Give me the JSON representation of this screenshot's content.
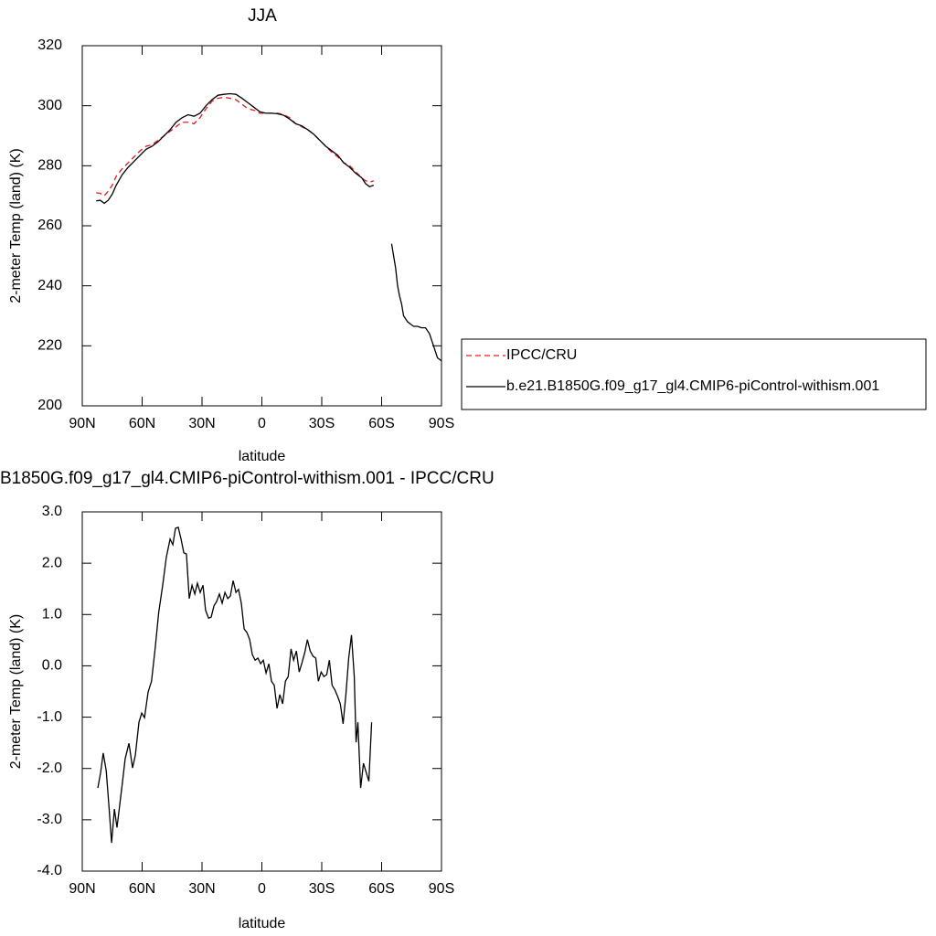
{
  "chart_data": [
    {
      "type": "line",
      "title": "JJA",
      "x_label": "latitude",
      "y_label": "2-meter Temp (land) (K)",
      "xlim": [
        90,
        -90
      ],
      "xticks": [
        {
          "value": 90,
          "label": "90N"
        },
        {
          "value": 60,
          "label": "60N"
        },
        {
          "value": 30,
          "label": "30N"
        },
        0,
        {
          "value": -30,
          "label": "30S"
        },
        {
          "value": -60,
          "label": "60S"
        },
        {
          "value": -90,
          "label": "90S"
        }
      ],
      "ylim": [
        200,
        320
      ],
      "yticks": [
        200,
        220,
        240,
        260,
        280,
        300,
        320
      ],
      "legend": "right",
      "x": [
        83,
        81,
        79,
        77,
        75,
        73,
        70,
        67,
        64,
        61,
        58,
        55,
        52,
        49,
        46,
        43,
        40,
        37,
        34,
        31,
        28,
        25,
        22,
        19,
        16,
        13,
        10,
        7,
        4,
        1,
        -2,
        -5,
        -8,
        -11,
        -14,
        -17,
        -20,
        -23,
        -26,
        -29,
        -32,
        -35,
        -38,
        -41,
        -44,
        -47,
        -50,
        -52,
        -54,
        -56,
        -60,
        -65,
        -67,
        -68,
        -69,
        -70,
        -71,
        -73,
        -75,
        -76,
        -78,
        -80,
        -82,
        -84,
        -86,
        -88,
        -90
      ],
      "series": [
        {
          "name": "IPCC/CRU",
          "color": "#e41a1c",
          "line_style": "dashed",
          "values": [
            271,
            270.8,
            270,
            271.5,
            273.5,
            276.5,
            279,
            281,
            283,
            285,
            286.5,
            287,
            288.5,
            290,
            291.5,
            293,
            294.5,
            294.5,
            294,
            296,
            299,
            301.5,
            302.5,
            302.8,
            302.5,
            302,
            300.5,
            299,
            298.5,
            297.5,
            297.5,
            297.5,
            297.5,
            297,
            296,
            294,
            293,
            292,
            290.5,
            288.5,
            286.5,
            284.5,
            283,
            281,
            280,
            278,
            276,
            275,
            274.5,
            275,
            null,
            null,
            null,
            null,
            null,
            null,
            null,
            null,
            null,
            null,
            null,
            null,
            null,
            null,
            null,
            null,
            null
          ]
        },
        {
          "name": "b.e21.B1850G.f09_g17_gl4.CMIP6-piControl-withism.001",
          "color": "#000000",
          "line_style": "solid",
          "values": [
            268.3,
            268.5,
            267.5,
            268.5,
            270.5,
            273.5,
            277,
            279.5,
            281.5,
            283.5,
            285.5,
            286.5,
            288,
            290,
            292,
            294.5,
            296,
            297,
            296.5,
            297.5,
            300,
            302,
            303.5,
            303.8,
            304,
            303.8,
            302.5,
            301,
            299.5,
            298,
            297.5,
            297.5,
            297.3,
            296.8,
            295.5,
            294,
            293.3,
            292,
            290.5,
            288.5,
            286.5,
            285,
            283.5,
            281,
            279.5,
            277.5,
            276,
            274,
            273,
            273.5,
            null,
            254,
            246,
            240,
            236.5,
            234,
            230,
            228,
            227,
            226.5,
            226.5,
            226,
            226,
            224,
            220,
            216,
            215
          ]
        }
      ]
    },
    {
      "type": "line",
      "title": "B1850G.f09_g17_gl4.CMIP6-piControl-withism.001 - IPCC/CRU",
      "x_label": "latitude",
      "y_label": "2-meter Temp (land) (K)",
      "xlim": [
        90,
        -90
      ],
      "xticks": [
        {
          "value": 90,
          "label": "90N"
        },
        {
          "value": 60,
          "label": "60N"
        },
        {
          "value": 30,
          "label": "30N"
        },
        0,
        {
          "value": -30,
          "label": "30S"
        },
        {
          "value": -60,
          "label": "60S"
        },
        {
          "value": -90,
          "label": "90S"
        }
      ],
      "ylim": [
        -4,
        3
      ],
      "yticks": [
        {
          "value": -4,
          "label": "-4.0"
        },
        {
          "value": -3,
          "label": "-3.0"
        },
        {
          "value": -2,
          "label": "-2.0"
        },
        {
          "value": -1,
          "label": "-1.0"
        },
        {
          "value": 0,
          "label": "0.0"
        },
        {
          "value": 1,
          "label": "1.0"
        },
        {
          "value": 2,
          "label": "2.0"
        },
        {
          "value": 3,
          "label": "3.0"
        }
      ],
      "x": [
        82.2,
        80.8,
        79.5,
        78,
        76.7,
        75.3,
        73.9,
        72.6,
        71.2,
        69.8,
        68.5,
        66.6,
        64.8,
        63.4,
        61.6,
        60.2,
        58.8,
        57,
        55.3,
        53.5,
        51.7,
        49.7,
        47.9,
        46,
        44.6,
        43.3,
        41.9,
        40.5,
        39.1,
        37.8,
        36.4,
        35,
        33.6,
        32.3,
        30.9,
        29.5,
        28.2,
        26.7,
        25.4,
        24,
        22.7,
        21.3,
        19.9,
        18.5,
        17.1,
        15.8,
        14.4,
        13,
        11.7,
        10.3,
        8.9,
        7.5,
        6.1,
        4.8,
        3.4,
        2,
        0.6,
        -0.7,
        -2.1,
        -3.5,
        -4.8,
        -6.2,
        -7.6,
        -9,
        -10.4,
        -11.8,
        -13.2,
        -14.6,
        -15.9,
        -17.3,
        -18.7,
        -20.1,
        -21.5,
        -22.8,
        -24.2,
        -25.6,
        -27,
        -28.3,
        -29.7,
        -31.1,
        -32.5,
        -33.8,
        -35.2,
        -36.6,
        -38,
        -39.3,
        -40.7,
        -42.1,
        -43.5,
        -44.9,
        -46.3,
        -47.2,
        -48.1,
        -49.5,
        -50.9,
        -52.3,
        -53.6,
        -55
      ],
      "series": [
        {
          "color": "#000000",
          "values": [
            -2.38,
            -2.08,
            -1.7,
            -2.04,
            -2.7,
            -3.45,
            -2.79,
            -3.15,
            -2.7,
            -2.25,
            -1.81,
            -1.51,
            -1.99,
            -1.74,
            -1.1,
            -0.92,
            -1.01,
            -0.51,
            -0.3,
            0.33,
            1.04,
            1.57,
            2.11,
            2.47,
            2.36,
            2.68,
            2.7,
            2.47,
            2.2,
            2.18,
            1.31,
            1.57,
            1.4,
            1.61,
            1.43,
            1.57,
            1.08,
            0.93,
            0.95,
            1.17,
            1.25,
            1.4,
            1.22,
            1.43,
            1.31,
            1.36,
            1.66,
            1.43,
            1.49,
            1.22,
            0.72,
            0.65,
            0.51,
            0.22,
            0.11,
            0.15,
            0.04,
            0.11,
            -0.14,
            0.04,
            -0.3,
            -0.38,
            -0.83,
            -0.56,
            -0.74,
            -0.3,
            -0.21,
            0.33,
            0.11,
            0.29,
            -0.12,
            0.06,
            0.26,
            0.51,
            0.29,
            0.19,
            0.15,
            -0.3,
            -0.12,
            -0.21,
            -0.17,
            0.11,
            -0.38,
            -0.47,
            -0.6,
            -0.74,
            -1.13,
            -0.56,
            0.15,
            0.6,
            -0.21,
            -1.49,
            -1.1,
            -2.38,
            -1.9,
            -2.08,
            -2.25,
            -1.1
          ]
        }
      ]
    }
  ]
}
